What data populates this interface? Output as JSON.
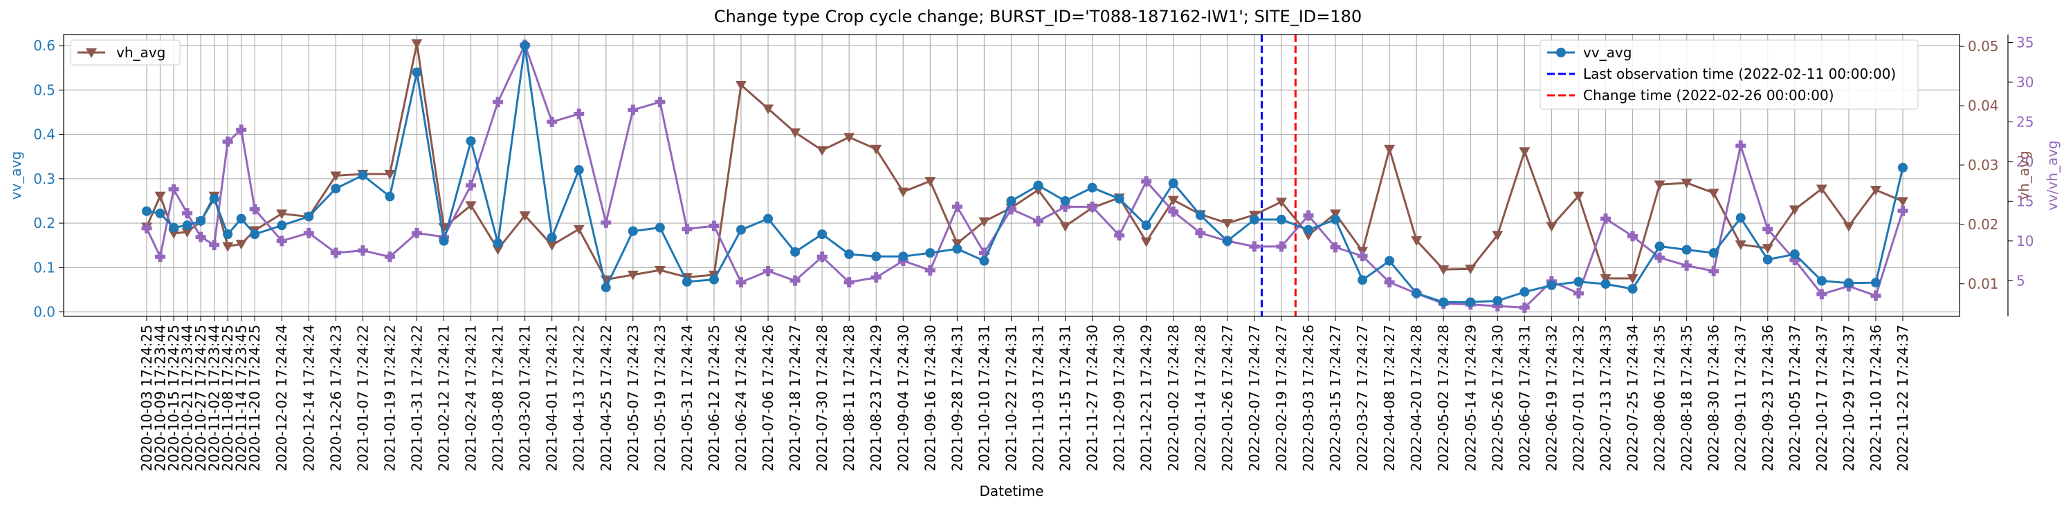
{
  "chart_data": {
    "type": "line",
    "title": "Change type Crop cycle change; BURST_ID='T088-187162-IW1'; SITE_ID=180",
    "xlabel": "Datetime",
    "x": [
      "2020-10-03 17:24:25",
      "2020-10-09 17:23:44",
      "2020-10-15 17:24:25",
      "2020-10-21 17:23:44",
      "2020-10-27 17:24:25",
      "2020-11-02 17:23:44",
      "2020-11-08 17:24:25",
      "2020-11-14 17:23:45",
      "2020-11-20 17:24:25",
      "2020-12-02 17:24:24",
      "2020-12-14 17:24:24",
      "2020-12-26 17:24:23",
      "2021-01-07 17:24:22",
      "2021-01-19 17:24:22",
      "2021-01-31 17:24:22",
      "2021-02-12 17:24:21",
      "2021-02-24 17:24:21",
      "2021-03-08 17:24:21",
      "2021-03-20 17:24:21",
      "2021-04-01 17:24:21",
      "2021-04-13 17:24:22",
      "2021-04-25 17:24:22",
      "2021-05-07 17:24:23",
      "2021-05-19 17:24:23",
      "2021-05-31 17:24:24",
      "2021-06-12 17:24:25",
      "2021-06-24 17:24:26",
      "2021-07-06 17:24:26",
      "2021-07-18 17:24:27",
      "2021-07-30 17:24:28",
      "2021-08-11 17:24:28",
      "2021-08-23 17:24:29",
      "2021-09-04 17:24:30",
      "2021-09-16 17:24:30",
      "2021-09-28 17:24:31",
      "2021-10-10 17:24:31",
      "2021-10-22 17:24:31",
      "2021-11-03 17:24:31",
      "2021-11-15 17:24:31",
      "2021-11-27 17:24:30",
      "2021-12-09 17:24:30",
      "2021-12-21 17:24:29",
      "2022-01-02 17:24:28",
      "2022-01-14 17:24:28",
      "2022-01-26 17:24:27",
      "2022-02-07 17:24:27",
      "2022-02-19 17:24:27",
      "2022-03-03 17:24:26",
      "2022-03-15 17:24:27",
      "2022-03-27 17:24:27",
      "2022-04-08 17:24:27",
      "2022-04-20 17:24:28",
      "2022-05-02 17:24:28",
      "2022-05-14 17:24:29",
      "2022-05-26 17:24:30",
      "2022-06-07 17:24:31",
      "2022-06-19 17:24:32",
      "2022-07-01 17:24:32",
      "2022-07-13 17:24:33",
      "2022-07-25 17:24:34",
      "2022-08-06 17:24:35",
      "2022-08-18 17:24:35",
      "2022-08-30 17:24:36",
      "2022-09-11 17:24:37",
      "2022-09-23 17:24:36",
      "2022-10-05 17:24:37",
      "2022-10-17 17:24:37",
      "2022-10-29 17:24:37",
      "2022-11-10 17:24:36",
      "2022-11-22 17:24:37"
    ],
    "axes": {
      "left": {
        "label": "vv_avg",
        "color": "#1f77b4",
        "ylim": [
          -0.01,
          0.625
        ],
        "ticks": [
          "0.0",
          "0.1",
          "0.2",
          "0.3",
          "0.4",
          "0.5",
          "0.6"
        ]
      },
      "right1": {
        "label": "vh_avg",
        "color": "#8c564b",
        "ylim": [
          0.0045,
          0.052
        ],
        "ticks": [
          "0.01",
          "0.02",
          "0.03",
          "0.04",
          "0.05"
        ]
      },
      "right2": {
        "label": "vv/vh_avg",
        "color": "#9467bd",
        "ylim": [
          0.5,
          36
        ],
        "ticks": [
          "5",
          "10",
          "15",
          "20",
          "25",
          "30",
          "35"
        ]
      }
    },
    "series": [
      {
        "name": "vv_avg",
        "axis": "left",
        "color": "#1f77b4",
        "marker": "circle",
        "values": [
          0.227,
          0.222,
          0.19,
          0.195,
          0.205,
          0.255,
          0.175,
          0.21,
          0.175,
          0.195,
          0.215,
          0.278,
          0.308,
          0.26,
          0.54,
          0.16,
          0.385,
          0.155,
          0.6,
          0.168,
          0.32,
          0.055,
          0.182,
          0.19,
          0.068,
          0.073,
          0.185,
          0.21,
          0.135,
          0.175,
          0.13,
          0.125,
          0.125,
          0.133,
          0.142,
          0.115,
          0.25,
          0.285,
          0.25,
          0.28,
          0.255,
          0.195,
          0.29,
          0.218,
          0.16,
          0.208,
          0.208,
          0.185,
          0.208,
          0.072,
          0.115,
          0.042,
          0.022,
          0.022,
          0.025,
          0.045,
          0.06,
          0.068,
          0.063,
          0.052,
          0.148,
          0.14,
          0.133,
          0.212,
          0.118,
          0.13,
          0.07,
          0.065,
          0.066,
          0.325
        ]
      },
      {
        "name": "vh_avg",
        "axis": "right1",
        "color": "#8c564b",
        "marker": "triangle-down",
        "values": [
          0.0196,
          0.0248,
          0.0185,
          0.0187,
          0.0205,
          0.0248,
          0.0163,
          0.0167,
          0.019,
          0.0218,
          0.0213,
          0.0282,
          0.0285,
          0.0285,
          0.0505,
          0.0195,
          0.0232,
          0.0158,
          0.0215,
          0.0165,
          0.0192,
          0.0107,
          0.0115,
          0.0123,
          0.0111,
          0.0115,
          0.0435,
          0.0395,
          0.0355,
          0.0325,
          0.0347,
          0.0327,
          0.0255,
          0.0273,
          0.0168,
          0.0205,
          0.0228,
          0.0258,
          0.0197,
          0.0228,
          0.0245,
          0.0171,
          0.0241,
          0.0217,
          0.0202,
          0.0216,
          0.0238,
          0.0182,
          0.0218,
          0.0155,
          0.0327,
          0.0173,
          0.0124,
          0.0125,
          0.0182,
          0.0323,
          0.0197,
          0.0248,
          0.0109,
          0.0109,
          0.0267,
          0.027,
          0.0253,
          0.0166,
          0.016,
          0.0225,
          0.026,
          0.0197,
          0.0258,
          0.0239
        ]
      },
      {
        "name": "vv/vh_avg",
        "axis": "right2",
        "color": "#9467bd",
        "marker": "plus-filled",
        "values": [
          11.6,
          8.0,
          16.5,
          13.5,
          10.5,
          9.5,
          22.5,
          24.0,
          14.0,
          10.0,
          11.0,
          8.5,
          8.8,
          8.0,
          11.0,
          10.5,
          17.0,
          27.5,
          34.7,
          25.0,
          26.0,
          12.3,
          26.5,
          27.5,
          11.5,
          11.9,
          4.8,
          6.2,
          5.0,
          8.0,
          4.8,
          5.4,
          7.5,
          6.3,
          14.3,
          8.5,
          14.0,
          12.5,
          14.3,
          14.3,
          10.7,
          17.5,
          13.7,
          11.0,
          10.0,
          9.3,
          9.3,
          13.2,
          9.2,
          8.1,
          4.8,
          3.4,
          2.1,
          2.0,
          1.8,
          1.6,
          4.9,
          3.4,
          12.8,
          10.6,
          7.9,
          6.9,
          6.2,
          22.0,
          11.5,
          7.6,
          3.3,
          4.3,
          3.1,
          13.8
        ]
      }
    ],
    "vlines": [
      {
        "label": "Last observation time (2022-02-11 00:00:00)",
        "x": "2022-02-11 00:00:00",
        "color": "#0000ff",
        "style": "dashed"
      },
      {
        "label": "Change time (2022-02-26 00:00:00)",
        "x": "2022-02-26 00:00:00",
        "color": "#ff0000",
        "style": "dashed"
      }
    ],
    "legends": {
      "left": {
        "placement": "upper-left",
        "entries": [
          "vh_avg"
        ]
      },
      "right": {
        "placement": "upper-right",
        "entries": [
          "vv_avg",
          "Last observation time (2022-02-11 00:00:00)",
          "Change time (2022-02-26 00:00:00)"
        ]
      }
    },
    "grid": true
  }
}
